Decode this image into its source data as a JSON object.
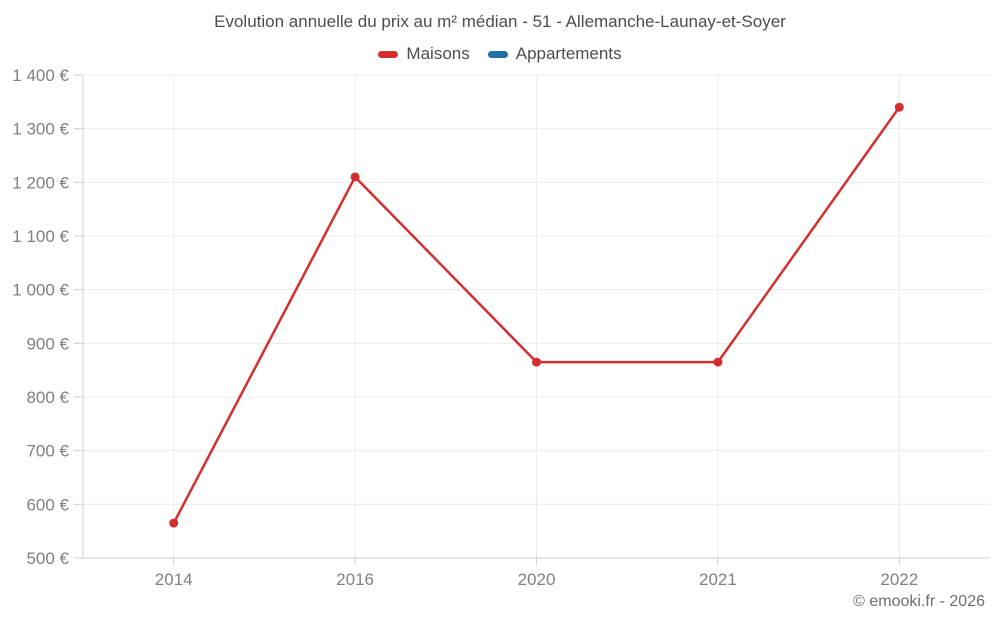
{
  "header": {},
  "footer": {
    "credit": "© emooki.fr - 2026"
  },
  "colors": {
    "grid": "#ebebeb",
    "axis": "#cccccc",
    "tick_label": "#808080",
    "title_text": "#4d4d4d",
    "footer_text": "#6e6e6e",
    "maisons_red": "#d32f2f",
    "appartements_blue": "#1f6fa6"
  },
  "chart_data": {
    "type": "line",
    "title": "Evolution annuelle du prix au m² médian - 51 - Allemanche-Launay-et-Soyer",
    "xlabel": "",
    "ylabel": "",
    "categories": [
      "2014",
      "2016",
      "2020",
      "2021",
      "2022"
    ],
    "series": [
      {
        "name": "Maisons",
        "color": "#d32f2f",
        "values": [
          565,
          1210,
          865,
          865,
          1340
        ]
      },
      {
        "name": "Appartements",
        "color": "#1f6fa6",
        "values": null
      }
    ],
    "ylim": [
      500,
      1400
    ],
    "ytick_step": 100,
    "yticks": [
      {
        "value": 500,
        "label": "500 €"
      },
      {
        "value": 600,
        "label": "600 €"
      },
      {
        "value": 700,
        "label": "700 €"
      },
      {
        "value": 800,
        "label": "800 €"
      },
      {
        "value": 900,
        "label": "900 €"
      },
      {
        "value": 1000,
        "label": "1 000 €"
      },
      {
        "value": 1100,
        "label": "1 100 €"
      },
      {
        "value": 1200,
        "label": "1 200 €"
      },
      {
        "value": 1300,
        "label": "1 300 €"
      },
      {
        "value": 1400,
        "label": "1 400 €"
      }
    ],
    "grid": true,
    "legend_position": "top",
    "marker": "circle",
    "currency": "EUR"
  }
}
